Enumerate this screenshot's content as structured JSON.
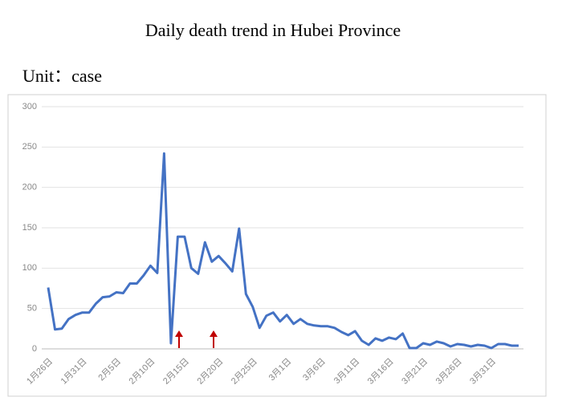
{
  "chart_data": {
    "type": "line",
    "title": "Daily death trend in Hubei Province",
    "subtitle": "Unit：case",
    "categories": [
      "1月26日",
      null,
      null,
      null,
      null,
      "1月31日",
      null,
      null,
      null,
      null,
      "2月5日",
      null,
      null,
      null,
      null,
      "2月10日",
      null,
      null,
      null,
      null,
      "2月15日",
      null,
      null,
      null,
      null,
      "2月20日",
      null,
      null,
      null,
      null,
      "2月25日",
      null,
      null,
      null,
      null,
      "3月1日",
      null,
      null,
      null,
      null,
      "3月6日",
      null,
      null,
      null,
      null,
      "3月11日",
      null,
      null,
      null,
      null,
      "3月16日",
      null,
      null,
      null,
      null,
      "3月21日",
      null,
      null,
      null,
      null,
      "3月26日",
      null,
      null,
      null,
      null,
      "3月31日",
      null,
      null,
      null,
      null
    ],
    "values": [
      76,
      24,
      25,
      37,
      42,
      45,
      45,
      56,
      64,
      65,
      70,
      69,
      81,
      81,
      91,
      103,
      94,
      242,
      7,
      139,
      139,
      100,
      93,
      132,
      108,
      115,
      106,
      96,
      149,
      68,
      52,
      26,
      41,
      45,
      34,
      42,
      31,
      37,
      31,
      29,
      28,
      28,
      26,
      21,
      17,
      22,
      10,
      5,
      13,
      10,
      14,
      12,
      19,
      1,
      1,
      7,
      5,
      9,
      7,
      3,
      6,
      5,
      3,
      5,
      4,
      1,
      6,
      6,
      4,
      4
    ],
    "color": "#4472c4",
    "ylim": [
      0,
      300
    ],
    "yticks": [
      0,
      50,
      100,
      150,
      200,
      250,
      300
    ],
    "grid": true
  }
}
